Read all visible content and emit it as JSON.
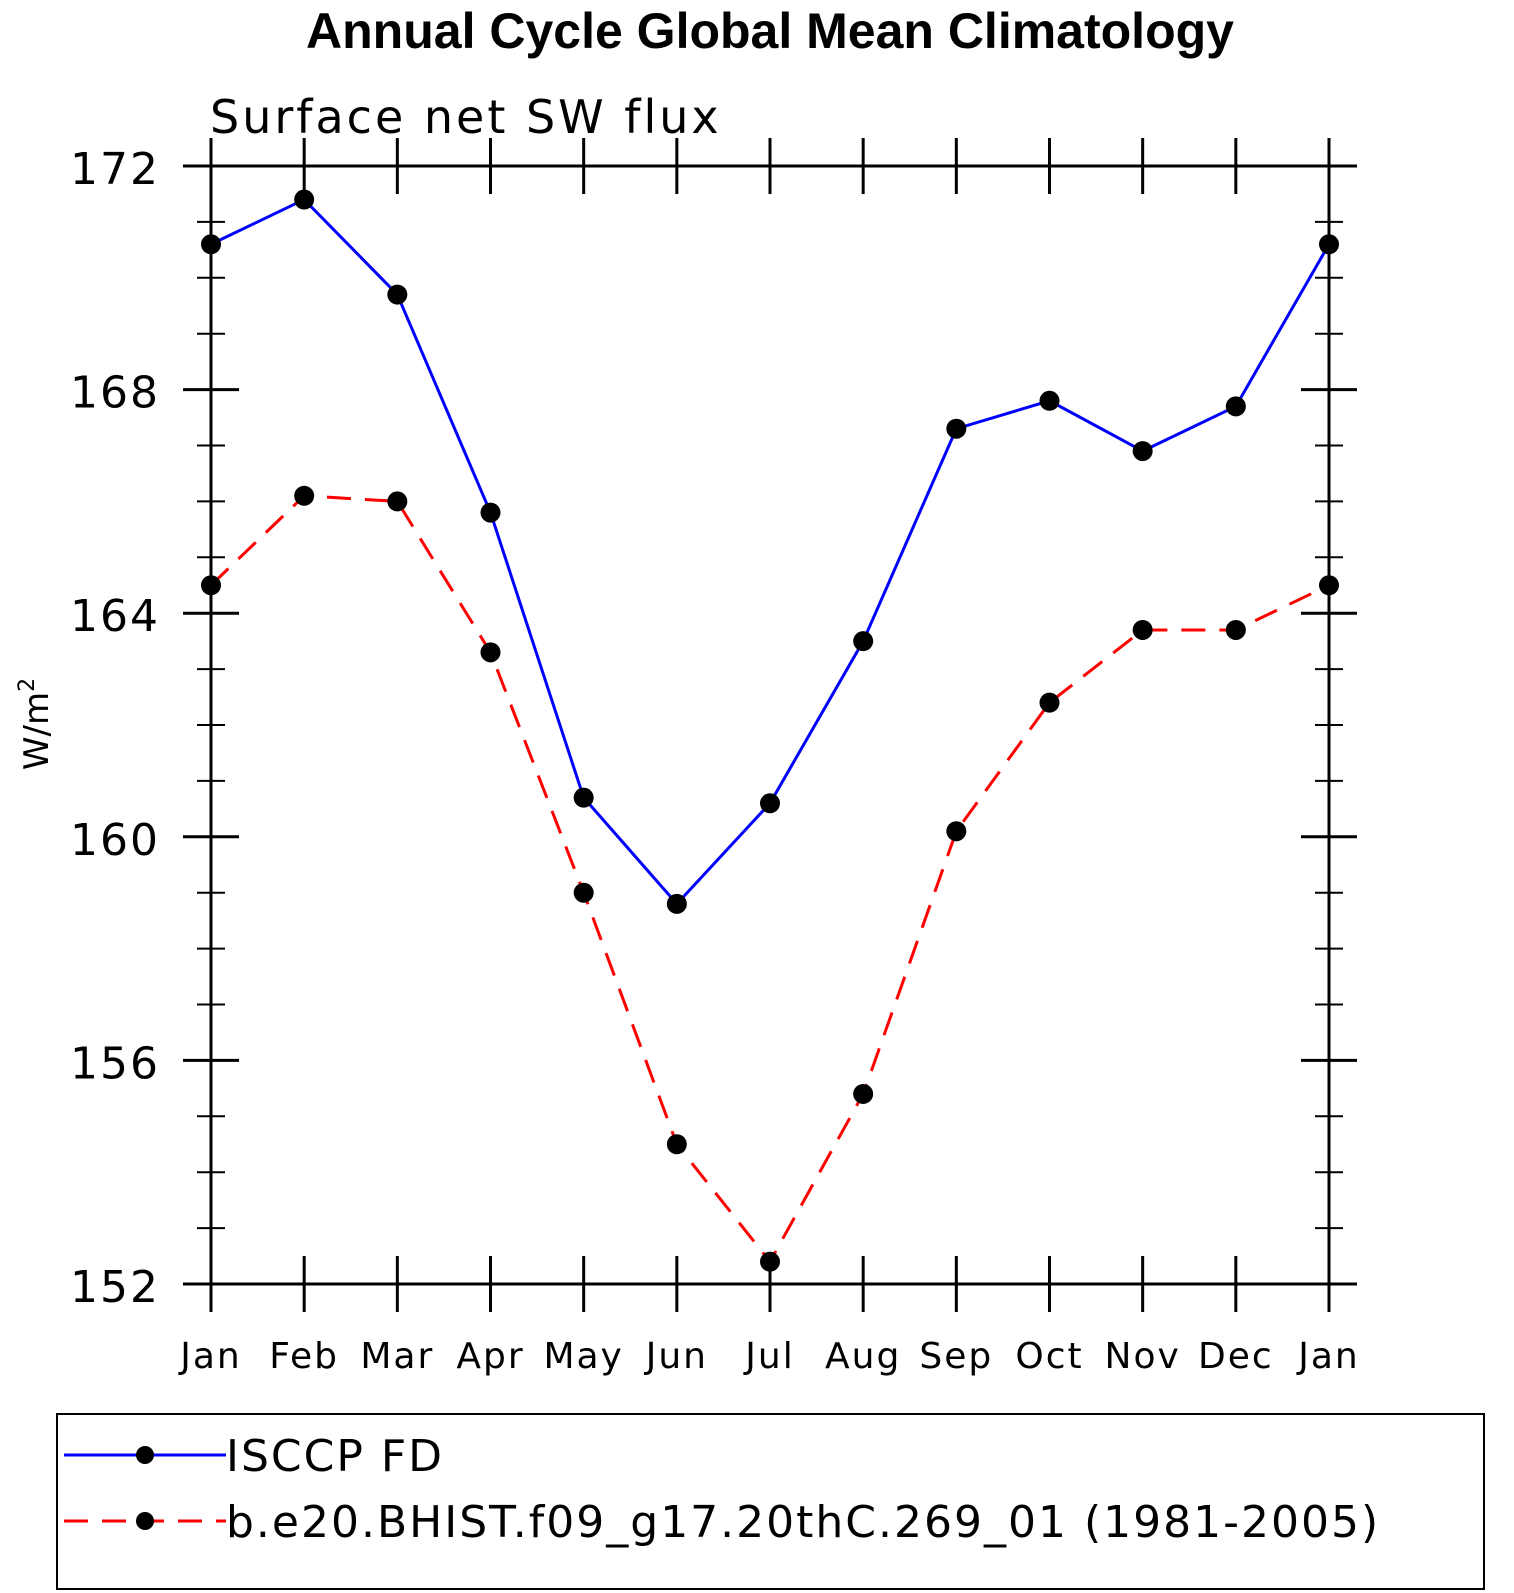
{
  "chart_data": {
    "type": "line",
    "title": "Annual Cycle Global Mean Climatology",
    "subtitle": "Surface net SW flux",
    "ylabel": "W/m",
    "ylabel_superscript": "2",
    "xlabel": "",
    "categories": [
      "Jan",
      "Feb",
      "Mar",
      "Apr",
      "May",
      "Jun",
      "Jul",
      "Aug",
      "Sep",
      "Oct",
      "Nov",
      "Dec",
      "Jan"
    ],
    "ylim": [
      152,
      172
    ],
    "yticks": [
      "152",
      "156",
      "160",
      "164",
      "168",
      "172"
    ],
    "ytick_values": [
      152,
      156,
      160,
      164,
      168,
      172
    ],
    "grid": false,
    "legend_position": "bottom",
    "series": [
      {
        "name": "ISCCP FD",
        "color": "#0000ff",
        "dash": "solid",
        "values": [
          170.6,
          171.4,
          169.7,
          165.8,
          160.7,
          158.8,
          160.6,
          163.5,
          167.3,
          167.8,
          166.9,
          167.7,
          170.6
        ]
      },
      {
        "name": "b.e20.BHIST.f09_g17.20thC.269_01 (1981-2005)",
        "color": "#ff0000",
        "dash": "dashed",
        "values": [
          164.5,
          166.1,
          166.0,
          163.3,
          159.0,
          154.5,
          152.4,
          155.4,
          160.1,
          162.4,
          163.7,
          163.7,
          164.5
        ]
      }
    ]
  }
}
